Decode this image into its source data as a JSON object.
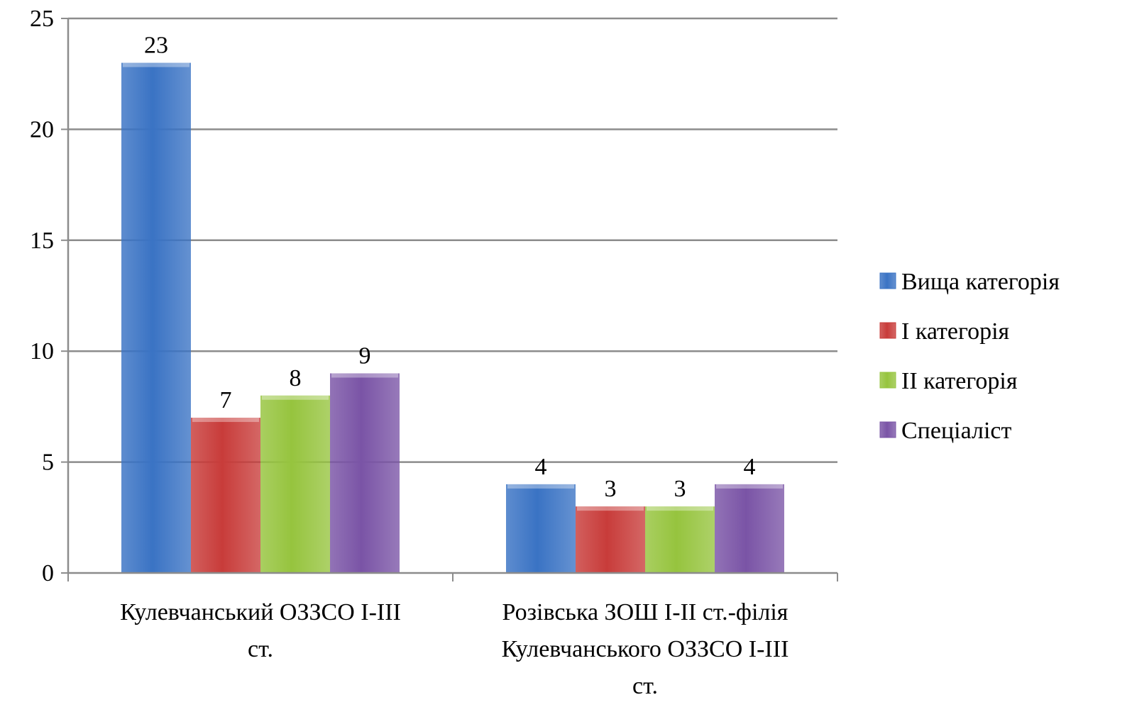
{
  "chart_data": {
    "type": "bar",
    "categories": [
      [
        "Кулевчанський ОЗЗСО І-ІІІ",
        "ст."
      ],
      [
        "Розівська ЗОШ І-ІІ ст.-філія",
        "Кулевчанського ОЗЗСО І-ІІІ",
        "ст."
      ]
    ],
    "series": [
      {
        "name": "Вища категорія",
        "values": [
          23,
          4
        ],
        "color": "#3a73c4"
      },
      {
        "name": "І категорія",
        "values": [
          7,
          3
        ],
        "color": "#c83c3a"
      },
      {
        "name": "ІІ категорія",
        "values": [
          8,
          3
        ],
        "color": "#96c43e"
      },
      {
        "name": "Спеціаліст",
        "values": [
          9,
          4
        ],
        "color": "#7a54a6"
      }
    ],
    "ylim": [
      0,
      25
    ],
    "yticks": [
      0,
      5,
      10,
      15,
      20,
      25
    ],
    "grid": true,
    "legend": "right",
    "show_data_labels": true
  }
}
